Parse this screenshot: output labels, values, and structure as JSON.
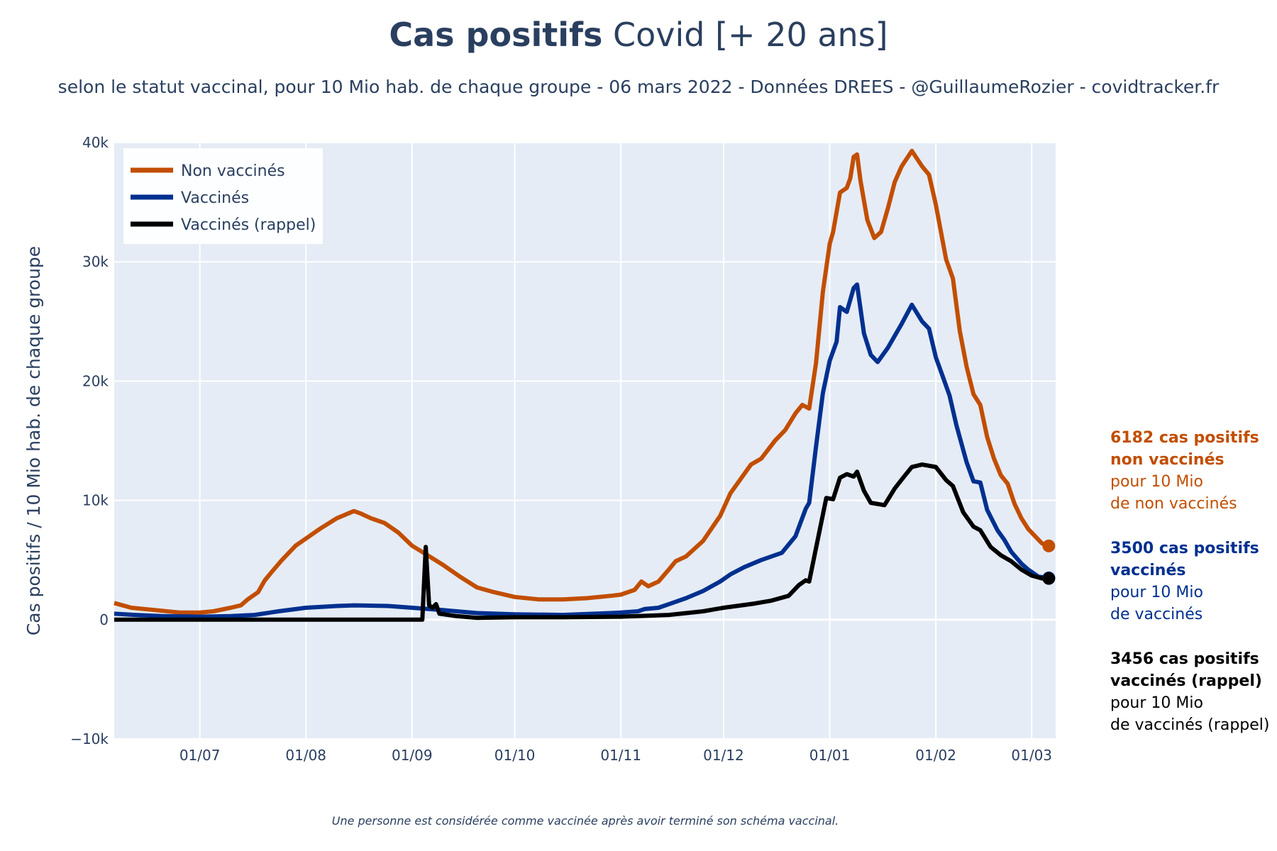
{
  "title": {
    "bold": "Cas positifs",
    "rest": "Covid [+ 20 ans]"
  },
  "subtitle": "selon le statut vaccinal, pour 10 Mio hab. de chaque groupe - 06 mars 2022 - Données DREES - @GuillaumeRozier - covidtracker.fr",
  "footnote": "Une personne est considérée comme vaccinée après avoir terminé son schéma vaccinal.",
  "annotations": [
    {
      "line1": "6182 cas positifs",
      "line2": "non vaccinés",
      "line3": "pour 10 Mio",
      "line4": "de non vaccinés",
      "color": "#c24e00"
    },
    {
      "line1": "3500 cas positifs",
      "line2": "vaccinés",
      "line3": "pour 10 Mio",
      "line4": "de vaccinés",
      "color": "#00308f"
    },
    {
      "line1": "3456 cas positifs",
      "line2": "vaccinés (rappel)",
      "line3": "pour 10 Mio",
      "line4": "de vaccinés (rappel)",
      "color": "#000000"
    }
  ],
  "chart_data": {
    "type": "line",
    "ylabel": "Cas positifs / 10 Mio hab. de chaque groupe",
    "xlabel": "",
    "ylim": [
      -10000,
      40000
    ],
    "yticks": [
      -10000,
      0,
      10000,
      20000,
      30000,
      40000
    ],
    "ytick_labels": [
      "−10k",
      "0",
      "10k",
      "20k",
      "30k",
      "40k"
    ],
    "xlim": [
      "2021-06-06",
      "2022-03-08"
    ],
    "xticks": [
      "2021-07-01",
      "2021-08-01",
      "2021-09-01",
      "2021-10-01",
      "2021-11-01",
      "2021-12-01",
      "2022-01-01",
      "2022-02-01",
      "2022-03-01"
    ],
    "xtick_labels": [
      "01/07",
      "01/08",
      "01/09",
      "01/10",
      "01/11",
      "01/12",
      "01/01",
      "01/02",
      "01/03"
    ],
    "grid": true,
    "legend": "top-left",
    "series": [
      {
        "name": "Non vaccinés",
        "color": "#c24e00",
        "points": [
          [
            "2021-06-06",
            1400
          ],
          [
            "2021-06-11",
            1000
          ],
          [
            "2021-06-18",
            800
          ],
          [
            "2021-06-25",
            600
          ],
          [
            "2021-07-01",
            600
          ],
          [
            "2021-07-05",
            700
          ],
          [
            "2021-07-10",
            1000
          ],
          [
            "2021-07-13",
            1200
          ],
          [
            "2021-07-15",
            1700
          ],
          [
            "2021-07-18",
            2300
          ],
          [
            "2021-07-20",
            3300
          ],
          [
            "2021-07-22",
            4000
          ],
          [
            "2021-07-25",
            5000
          ],
          [
            "2021-07-29",
            6200
          ],
          [
            "2021-08-01",
            6800
          ],
          [
            "2021-08-05",
            7600
          ],
          [
            "2021-08-10",
            8500
          ],
          [
            "2021-08-15",
            9100
          ],
          [
            "2021-08-17",
            8900
          ],
          [
            "2021-08-20",
            8500
          ],
          [
            "2021-08-24",
            8100
          ],
          [
            "2021-08-28",
            7300
          ],
          [
            "2021-09-01",
            6200
          ],
          [
            "2021-09-05",
            5500
          ],
          [
            "2021-09-10",
            4600
          ],
          [
            "2021-09-15",
            3600
          ],
          [
            "2021-09-20",
            2700
          ],
          [
            "2021-09-25",
            2300
          ],
          [
            "2021-10-01",
            1900
          ],
          [
            "2021-10-08",
            1700
          ],
          [
            "2021-10-15",
            1700
          ],
          [
            "2021-10-22",
            1800
          ],
          [
            "2021-10-29",
            2000
          ],
          [
            "2021-11-01",
            2100
          ],
          [
            "2021-11-05",
            2500
          ],
          [
            "2021-11-07",
            3200
          ],
          [
            "2021-11-09",
            2800
          ],
          [
            "2021-11-12",
            3200
          ],
          [
            "2021-11-15",
            4200
          ],
          [
            "2021-11-17",
            4900
          ],
          [
            "2021-11-20",
            5300
          ],
          [
            "2021-11-25",
            6600
          ],
          [
            "2021-11-30",
            8700
          ],
          [
            "2021-12-03",
            10600
          ],
          [
            "2021-12-06",
            11800
          ],
          [
            "2021-12-09",
            13000
          ],
          [
            "2021-12-12",
            13500
          ],
          [
            "2021-12-16",
            15000
          ],
          [
            "2021-12-19",
            15900
          ],
          [
            "2021-12-22",
            17300
          ],
          [
            "2021-12-24",
            18000
          ],
          [
            "2021-12-26",
            17700
          ],
          [
            "2021-12-28",
            21500
          ],
          [
            "2021-12-30",
            27500
          ],
          [
            "2022-01-01",
            31500
          ],
          [
            "2022-01-02",
            32500
          ],
          [
            "2022-01-04",
            35800
          ],
          [
            "2022-01-06",
            36200
          ],
          [
            "2022-01-07",
            37000
          ],
          [
            "2022-01-08",
            38800
          ],
          [
            "2022-01-09",
            39000
          ],
          [
            "2022-01-10",
            36800
          ],
          [
            "2022-01-12",
            33500
          ],
          [
            "2022-01-14",
            32000
          ],
          [
            "2022-01-16",
            32500
          ],
          [
            "2022-01-18",
            34500
          ],
          [
            "2022-01-20",
            36700
          ],
          [
            "2022-01-22",
            38000
          ],
          [
            "2022-01-25",
            39300
          ],
          [
            "2022-01-28",
            38000
          ],
          [
            "2022-01-30",
            37300
          ],
          [
            "2022-02-01",
            34800
          ],
          [
            "2022-02-04",
            30200
          ],
          [
            "2022-02-06",
            28600
          ],
          [
            "2022-02-08",
            24200
          ],
          [
            "2022-02-10",
            21200
          ],
          [
            "2022-02-12",
            18900
          ],
          [
            "2022-02-14",
            18000
          ],
          [
            "2022-02-16",
            15300
          ],
          [
            "2022-02-18",
            13500
          ],
          [
            "2022-02-20",
            12100
          ],
          [
            "2022-02-22",
            11400
          ],
          [
            "2022-02-24",
            9700
          ],
          [
            "2022-02-26",
            8500
          ],
          [
            "2022-02-28",
            7600
          ],
          [
            "2022-03-02",
            7000
          ],
          [
            "2022-03-04",
            6400
          ],
          [
            "2022-03-06",
            6182
          ]
        ]
      },
      {
        "name": "Vaccinés",
        "color": "#00308f",
        "points": [
          [
            "2021-06-06",
            500
          ],
          [
            "2021-06-12",
            400
          ],
          [
            "2021-06-20",
            300
          ],
          [
            "2021-07-01",
            250
          ],
          [
            "2021-07-10",
            300
          ],
          [
            "2021-07-17",
            400
          ],
          [
            "2021-07-24",
            700
          ],
          [
            "2021-08-01",
            1000
          ],
          [
            "2021-08-10",
            1150
          ],
          [
            "2021-08-15",
            1200
          ],
          [
            "2021-08-25",
            1150
          ],
          [
            "2021-09-01",
            1000
          ],
          [
            "2021-09-10",
            800
          ],
          [
            "2021-09-20",
            550
          ],
          [
            "2021-10-01",
            450
          ],
          [
            "2021-10-15",
            400
          ],
          [
            "2021-10-29",
            550
          ],
          [
            "2021-11-01",
            600
          ],
          [
            "2021-11-06",
            700
          ],
          [
            "2021-11-08",
            900
          ],
          [
            "2021-11-12",
            1000
          ],
          [
            "2021-11-16",
            1400
          ],
          [
            "2021-11-20",
            1800
          ],
          [
            "2021-11-25",
            2400
          ],
          [
            "2021-11-30",
            3200
          ],
          [
            "2021-12-03",
            3800
          ],
          [
            "2021-12-07",
            4400
          ],
          [
            "2021-12-12",
            5000
          ],
          [
            "2021-12-18",
            5600
          ],
          [
            "2021-12-22",
            7000
          ],
          [
            "2021-12-25",
            9300
          ],
          [
            "2021-12-26",
            9800
          ],
          [
            "2021-12-28",
            14500
          ],
          [
            "2021-12-30",
            19000
          ],
          [
            "2022-01-01",
            21700
          ],
          [
            "2022-01-03",
            23300
          ],
          [
            "2022-01-04",
            26200
          ],
          [
            "2022-01-06",
            25800
          ],
          [
            "2022-01-08",
            27800
          ],
          [
            "2022-01-09",
            28100
          ],
          [
            "2022-01-11",
            24000
          ],
          [
            "2022-01-13",
            22200
          ],
          [
            "2022-01-15",
            21600
          ],
          [
            "2022-01-18",
            22800
          ],
          [
            "2022-01-22",
            24800
          ],
          [
            "2022-01-25",
            26400
          ],
          [
            "2022-01-28",
            25000
          ],
          [
            "2022-01-30",
            24400
          ],
          [
            "2022-02-01",
            22000
          ],
          [
            "2022-02-03",
            20400
          ],
          [
            "2022-02-05",
            18800
          ],
          [
            "2022-02-07",
            16300
          ],
          [
            "2022-02-10",
            13200
          ],
          [
            "2022-02-12",
            11600
          ],
          [
            "2022-02-14",
            11500
          ],
          [
            "2022-02-16",
            9200
          ],
          [
            "2022-02-19",
            7500
          ],
          [
            "2022-02-21",
            6700
          ],
          [
            "2022-02-23",
            5700
          ],
          [
            "2022-02-26",
            4700
          ],
          [
            "2022-02-28",
            4200
          ],
          [
            "2022-03-03",
            3600
          ],
          [
            "2022-03-06",
            3500
          ]
        ]
      },
      {
        "name": "Vaccinés (rappel)",
        "color": "#000000",
        "points": [
          [
            "2021-06-06",
            0
          ],
          [
            "2021-09-04",
            0
          ],
          [
            "2021-09-05",
            6100
          ],
          [
            "2021-09-06",
            1200
          ],
          [
            "2021-09-07",
            1000
          ],
          [
            "2021-09-08",
            1300
          ],
          [
            "2021-09-09",
            500
          ],
          [
            "2021-09-14",
            300
          ],
          [
            "2021-09-20",
            150
          ],
          [
            "2021-10-01",
            200
          ],
          [
            "2021-10-15",
            200
          ],
          [
            "2021-11-01",
            250
          ],
          [
            "2021-11-15",
            400
          ],
          [
            "2021-11-25",
            700
          ],
          [
            "2021-12-01",
            1000
          ],
          [
            "2021-12-10",
            1350
          ],
          [
            "2021-12-15",
            1600
          ],
          [
            "2021-12-20",
            2000
          ],
          [
            "2021-12-23",
            2900
          ],
          [
            "2021-12-25",
            3300
          ],
          [
            "2021-12-26",
            3200
          ],
          [
            "2021-12-28",
            6000
          ],
          [
            "2021-12-31",
            10200
          ],
          [
            "2022-01-02",
            10100
          ],
          [
            "2022-01-04",
            11900
          ],
          [
            "2022-01-06",
            12200
          ],
          [
            "2022-01-08",
            12000
          ],
          [
            "2022-01-09",
            12400
          ],
          [
            "2022-01-11",
            10800
          ],
          [
            "2022-01-13",
            9800
          ],
          [
            "2022-01-17",
            9600
          ],
          [
            "2022-01-20",
            11000
          ],
          [
            "2022-01-23",
            12100
          ],
          [
            "2022-01-25",
            12800
          ],
          [
            "2022-01-28",
            13000
          ],
          [
            "2022-02-01",
            12800
          ],
          [
            "2022-02-04",
            11700
          ],
          [
            "2022-02-06",
            11200
          ],
          [
            "2022-02-09",
            9000
          ],
          [
            "2022-02-12",
            7800
          ],
          [
            "2022-02-14",
            7500
          ],
          [
            "2022-02-17",
            6100
          ],
          [
            "2022-02-20",
            5400
          ],
          [
            "2022-02-23",
            4900
          ],
          [
            "2022-02-26",
            4200
          ],
          [
            "2022-03-01",
            3700
          ],
          [
            "2022-03-04",
            3460
          ],
          [
            "2022-03-06",
            3456
          ]
        ]
      }
    ]
  }
}
